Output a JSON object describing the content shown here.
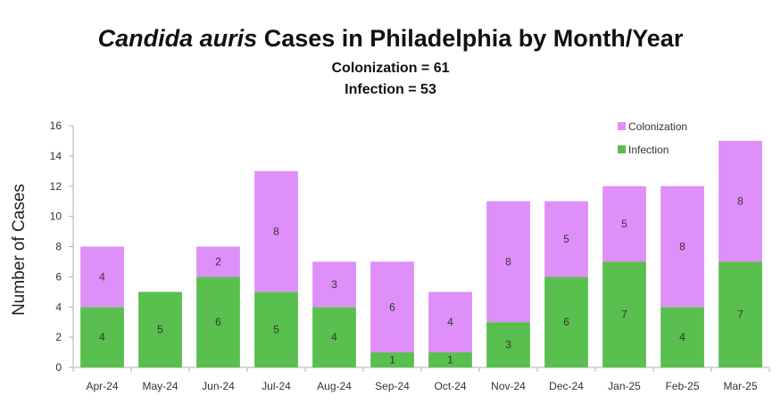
{
  "title": {
    "italic": "Candida auris",
    "rest": " Cases in Philadelphia by Month/Year"
  },
  "subtitles": [
    "Colonization = 61",
    "Infection = 53"
  ],
  "chart_data": {
    "type": "bar",
    "stacked": true,
    "categories": [
      "Apr-24",
      "May-24",
      "Jun-24",
      "Jul-24",
      "Aug-24",
      "Sep-24",
      "Oct-24",
      "Nov-24",
      "Dec-24",
      "Jan-25",
      "Feb-25",
      "Mar-25"
    ],
    "series": [
      {
        "name": "Infection",
        "color": "#59bf4e",
        "values": [
          4,
          5,
          6,
          5,
          4,
          1,
          1,
          3,
          6,
          7,
          4,
          7
        ]
      },
      {
        "name": "Colonization",
        "color": "#df8ff8",
        "values": [
          4,
          0,
          2,
          8,
          3,
          6,
          4,
          8,
          5,
          5,
          8,
          8
        ]
      }
    ],
    "ylabel": "Number of Cases",
    "xlabel": "",
    "ylim": [
      0,
      16
    ],
    "yticks": [
      0,
      2,
      4,
      6,
      8,
      10,
      12,
      14,
      16
    ],
    "legend": {
      "placement": "top-right",
      "order": [
        "Colonization",
        "Infection"
      ]
    },
    "grid": false
  }
}
